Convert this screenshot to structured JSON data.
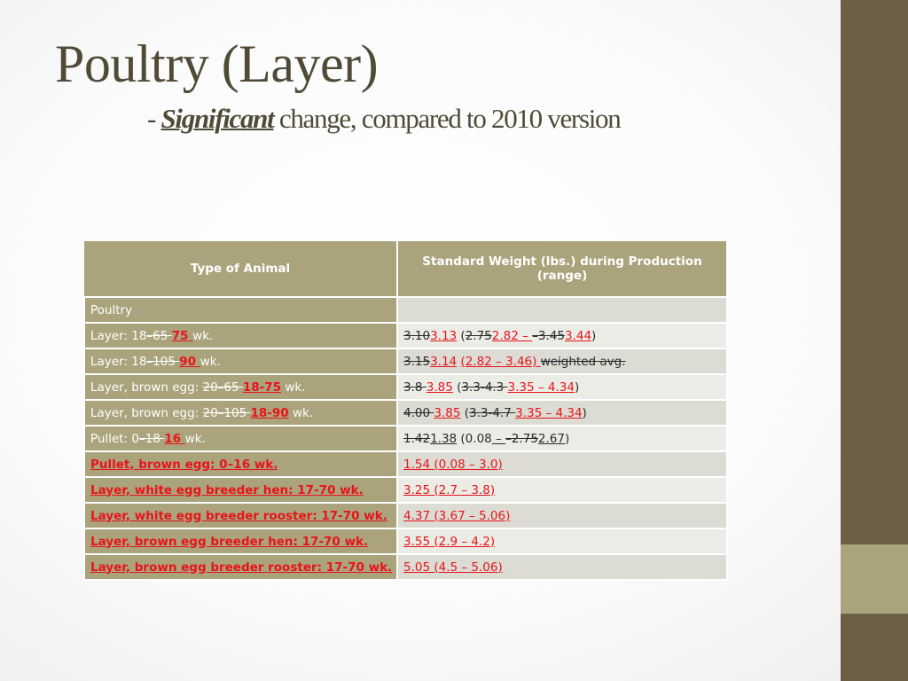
{
  "slide": {
    "title": "Poultry (Layer)",
    "subtitle_dash": "- ",
    "subtitle_emph": "Significant",
    "subtitle_rest": " change, compared to 2010 version"
  },
  "colors": {
    "header_bg": "#aba37c",
    "sidebar": "#6b5f48",
    "title": "#4f4b37",
    "change_red": "#e8141a"
  },
  "table": {
    "headers": [
      "Type of Animal",
      "Standard Weight (lbs.) during Production (range)"
    ],
    "rows": [
      {
        "animal": [
          {
            "t": "Poultry"
          }
        ],
        "weight": []
      },
      {
        "animal": [
          {
            "t": "Layer: 18"
          },
          {
            "t": "–65 ",
            "s": "del"
          },
          {
            "t": "75 ",
            "s": "rb"
          },
          {
            "t": "wk."
          }
        ],
        "weight": [
          {
            "t": "3.10",
            "s": "del"
          },
          {
            "t": "3.13",
            "s": "redu"
          },
          {
            "t": " ("
          },
          {
            "t": "2.75",
            "s": "del"
          },
          {
            "t": "2.82 – ",
            "s": "redu"
          },
          {
            "t": " –3.45",
            "s": "del"
          },
          {
            "t": "3.44",
            "s": "redu"
          },
          {
            "t": ")"
          }
        ]
      },
      {
        "animal": [
          {
            "t": "Layer: 18"
          },
          {
            "t": "–105 ",
            "s": "del"
          },
          {
            "t": "90 ",
            "s": "rb"
          },
          {
            "t": "wk."
          }
        ],
        "weight": [
          {
            "t": "3.15",
            "s": "del"
          },
          {
            "t": "3.14",
            "s": "redu"
          },
          {
            "t": " "
          },
          {
            "t": "(2.82 – 3.46) ",
            "s": "redu"
          },
          {
            "t": "weighted avg.",
            "s": "del"
          }
        ]
      },
      {
        "animal": [
          {
            "t": "Layer, brown egg: "
          },
          {
            "t": "20–65 ",
            "s": "del"
          },
          {
            "t": "18-75",
            "s": "rb"
          },
          {
            "t": " wk."
          }
        ],
        "weight": [
          {
            "t": "3.8 ",
            "s": "del"
          },
          {
            "t": "3.85",
            "s": "redu"
          },
          {
            "t": " ("
          },
          {
            "t": "3.3-4.3 ",
            "s": "del"
          },
          {
            "t": "3.35 – 4.34",
            "s": "redu"
          },
          {
            "t": ")"
          }
        ]
      },
      {
        "animal": [
          {
            "t": "Layer, brown egg: "
          },
          {
            "t": "20–105 ",
            "s": "del"
          },
          {
            "t": "18-90",
            "s": "rb"
          },
          {
            "t": " wk."
          }
        ],
        "weight": [
          {
            "t": "4.00 ",
            "s": "del"
          },
          {
            "t": "3.85",
            "s": "redu"
          },
          {
            "t": " ("
          },
          {
            "t": "3.3-4.7 ",
            "s": "del"
          },
          {
            "t": "3.35 – 4.34",
            "s": "redu"
          },
          {
            "t": ")"
          }
        ]
      },
      {
        "animal": [
          {
            "t": "Pullet: 0"
          },
          {
            "t": "–18 ",
            "s": "del"
          },
          {
            "t": "16 ",
            "s": "rb"
          },
          {
            "t": "wk."
          }
        ],
        "weight": [
          {
            "t": "1.42",
            "s": "del"
          },
          {
            "t": "1.38",
            "s": "u"
          },
          {
            "t": " (0.08"
          },
          {
            "t": " – ",
            "s": "u"
          },
          {
            "t": "–2.75",
            "s": "del"
          },
          {
            "t": "2.67",
            "s": "u"
          },
          {
            "t": ")"
          }
        ]
      },
      {
        "animal": [
          {
            "t": "Pullet, brown egg: 0–16 wk.",
            "s": "rb"
          }
        ],
        "weight": [
          {
            "t": "1.54 (0.08 – 3.0)",
            "s": "redu"
          }
        ]
      },
      {
        "animal": [
          {
            "t": "Layer, white egg breeder hen:  17-70 wk.",
            "s": "rb"
          }
        ],
        "weight": [
          {
            "t": "3.25 (2.7 – 3.8)",
            "s": "redu"
          }
        ]
      },
      {
        "animal": [
          {
            "t": "Layer, white egg breeder rooster:  17-70 wk.",
            "s": "rb"
          }
        ],
        "weight": [
          {
            "t": "4.37 (3.67 – 5.06)",
            "s": "redu"
          }
        ]
      },
      {
        "animal": [
          {
            "t": "Layer, brown egg breeder hen:  17-70 wk.",
            "s": "rb"
          }
        ],
        "weight": [
          {
            "t": "3.55 (2.9 – 4.2)",
            "s": "redu"
          }
        ]
      },
      {
        "animal": [
          {
            "t": "Layer, brown egg breeder rooster:  17-70 wk.",
            "s": "rb"
          }
        ],
        "weight": [
          {
            "t": "5.05 (4.5 – 5.06)",
            "s": "redu"
          }
        ]
      }
    ]
  }
}
